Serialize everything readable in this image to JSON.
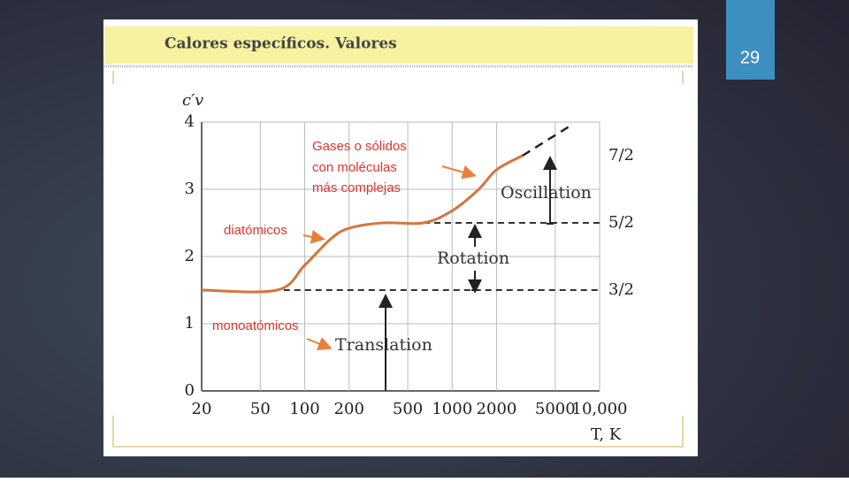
{
  "slide_number": "29",
  "chart_data": {
    "type": "line",
    "title": "Calores específicos. Valores",
    "ylabel": "c′v",
    "xlabel": "T, K",
    "xscale": "log",
    "grid": true,
    "x": [
      20,
      65,
      100,
      150,
      200,
      340,
      640,
      1000,
      1500,
      2000,
      3000,
      6500
    ],
    "series": [
      {
        "color": "#d2763e",
        "style": "solid",
        "values": [
          1.5,
          1.5,
          1.87,
          2.26,
          2.42,
          2.5,
          2.5,
          2.68,
          2.99,
          3.29,
          3.5,
          null
        ]
      },
      {
        "color": "#222222",
        "style": "dashed",
        "values": [
          null,
          null,
          null,
          null,
          null,
          null,
          null,
          null,
          null,
          null,
          3.5,
          3.96
        ]
      }
    ],
    "xlim": [
      20,
      10000
    ],
    "xticks": [
      20,
      50,
      100,
      200,
      500,
      1000,
      2000,
      5000,
      {
        "value": 10000,
        "label": "10,000"
      }
    ],
    "ylim": [
      0,
      4
    ],
    "yticks": [
      0,
      1,
      2,
      3,
      4
    ],
    "levels": [
      {
        "value": 1.5,
        "label": "3/2",
        "from": 72
      },
      {
        "value": 2.5,
        "label": "5/2",
        "from": 640
      },
      {
        "value": 3.5,
        "label": "7/2",
        "from": null
      }
    ],
    "annotations": [
      "Gases o sólidos",
      "con moléculas",
      "más complejas",
      "diatómicos",
      "monoatómicos",
      "Translation",
      "Rotation",
      "Oscillation"
    ]
  }
}
